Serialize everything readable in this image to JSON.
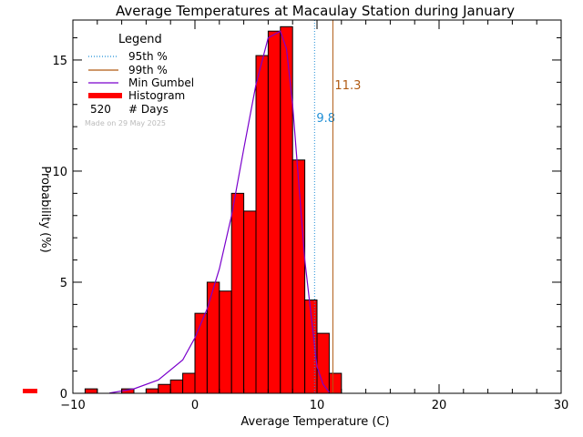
{
  "chart_data": {
    "type": "bar",
    "title": "Average Temperatures at Macaulay Station during January",
    "xlabel": "Average Temperature (C)",
    "ylabel": "Probability (%)",
    "xlim": [
      -10,
      30
    ],
    "ylim": [
      0,
      16.8
    ],
    "x_ticks": [
      -10,
      0,
      10,
      20,
      30
    ],
    "x_tick_labels": [
      "−10",
      "0",
      "10",
      "20",
      "30"
    ],
    "y_ticks": [
      0,
      5,
      10,
      15
    ],
    "y_tick_labels": [
      "0",
      "5",
      "10",
      "15"
    ],
    "bin_width": 1,
    "bins": [
      {
        "x0": -9,
        "value": 0.2
      },
      {
        "x0": -6,
        "value": 0.2
      },
      {
        "x0": -4,
        "value": 0.2
      },
      {
        "x0": -3,
        "value": 0.4
      },
      {
        "x0": -2,
        "value": 0.6
      },
      {
        "x0": -1,
        "value": 0.9
      },
      {
        "x0": 0,
        "value": 3.6
      },
      {
        "x0": 1,
        "value": 5.0
      },
      {
        "x0": 2,
        "value": 4.6
      },
      {
        "x0": 3,
        "value": 9.0
      },
      {
        "x0": 4,
        "value": 8.2
      },
      {
        "x0": 5,
        "value": 15.2
      },
      {
        "x0": 6,
        "value": 16.3
      },
      {
        "x0": 7,
        "value": 16.5
      },
      {
        "x0": 8,
        "value": 10.5
      },
      {
        "x0": 9,
        "value": 4.2
      },
      {
        "x0": 10,
        "value": 2.7
      },
      {
        "x0": 11,
        "value": 0.9
      }
    ],
    "gumbel_curve": {
      "x": [
        -7,
        -5,
        -3,
        -1,
        0,
        1,
        2,
        3,
        4,
        5,
        6,
        7,
        7.5,
        8,
        9,
        10,
        10.5,
        11
      ],
      "y": [
        0.01,
        0.2,
        0.6,
        1.5,
        2.5,
        3.8,
        5.6,
        8.0,
        11.0,
        13.9,
        16.0,
        16.3,
        15.5,
        13.0,
        6.0,
        1.2,
        0.4,
        0.05
      ]
    },
    "p95": {
      "value": 9.8,
      "label": "9.8",
      "color": "#1f8fd6"
    },
    "p99": {
      "value": 11.3,
      "label": "11.3",
      "color": "#b05a12"
    },
    "legend": {
      "title": "Legend",
      "placement": "top-left",
      "items": [
        {
          "label": "95th %",
          "color": "#1f8fd6",
          "style": "dotted"
        },
        {
          "label": "99th %",
          "color": "#b05a12",
          "style": "solid"
        },
        {
          "label": "Min Gumbel",
          "color": "#7a00cc",
          "style": "solid"
        },
        {
          "label": "Histogram",
          "color": "#ff0000",
          "style": "thick"
        }
      ],
      "count_value": "520",
      "count_label": "# Days",
      "made_on": "Made on 29 May 2025"
    },
    "colors": {
      "bar_fill": "#ff0000",
      "bar_edge": "#000000",
      "curve": "#7a00cc",
      "axis": "#000000"
    }
  }
}
